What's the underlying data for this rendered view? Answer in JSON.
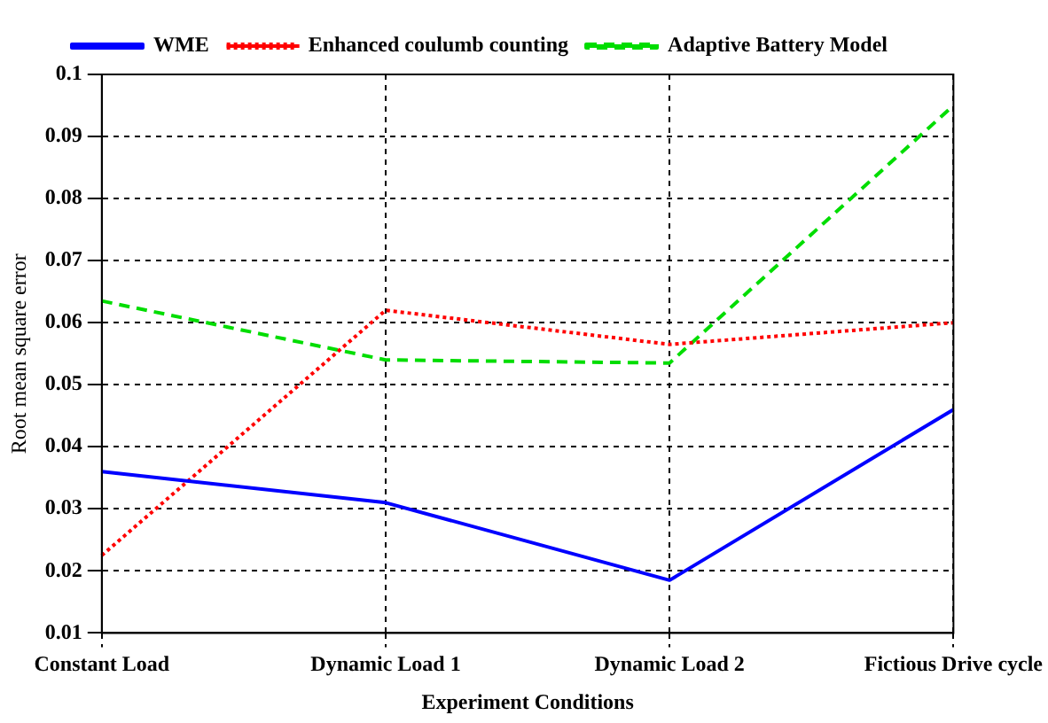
{
  "chart_data": {
    "type": "line",
    "xlabel": "Experiment Conditions",
    "ylabel": "Root mean square error",
    "categories": [
      "Constant Load",
      "Dynamic Load 1",
      "Dynamic Load 2",
      "Fictious Drive cycle"
    ],
    "series": [
      {
        "name": "WME",
        "color": "#0000ff",
        "line_style": "solid",
        "values": [
          0.036,
          0.031,
          0.0185,
          0.046
        ]
      },
      {
        "name": "Enhanced coulumb counting",
        "color": "#ff0000",
        "line_style": "dotted",
        "values": [
          0.0225,
          0.062,
          0.0565,
          0.06
        ]
      },
      {
        "name": "Adaptive Battery Model",
        "color": "#00dd00",
        "line_style": "dashed",
        "values": [
          0.0635,
          0.054,
          0.0535,
          0.095
        ]
      }
    ],
    "ylim": [
      0.01,
      0.1
    ],
    "yticks": [
      0.01,
      0.02,
      0.03,
      0.04,
      0.05,
      0.06,
      0.07,
      0.08,
      0.09,
      0.1
    ],
    "grid": true,
    "legend": "top",
    "marker": "none"
  }
}
